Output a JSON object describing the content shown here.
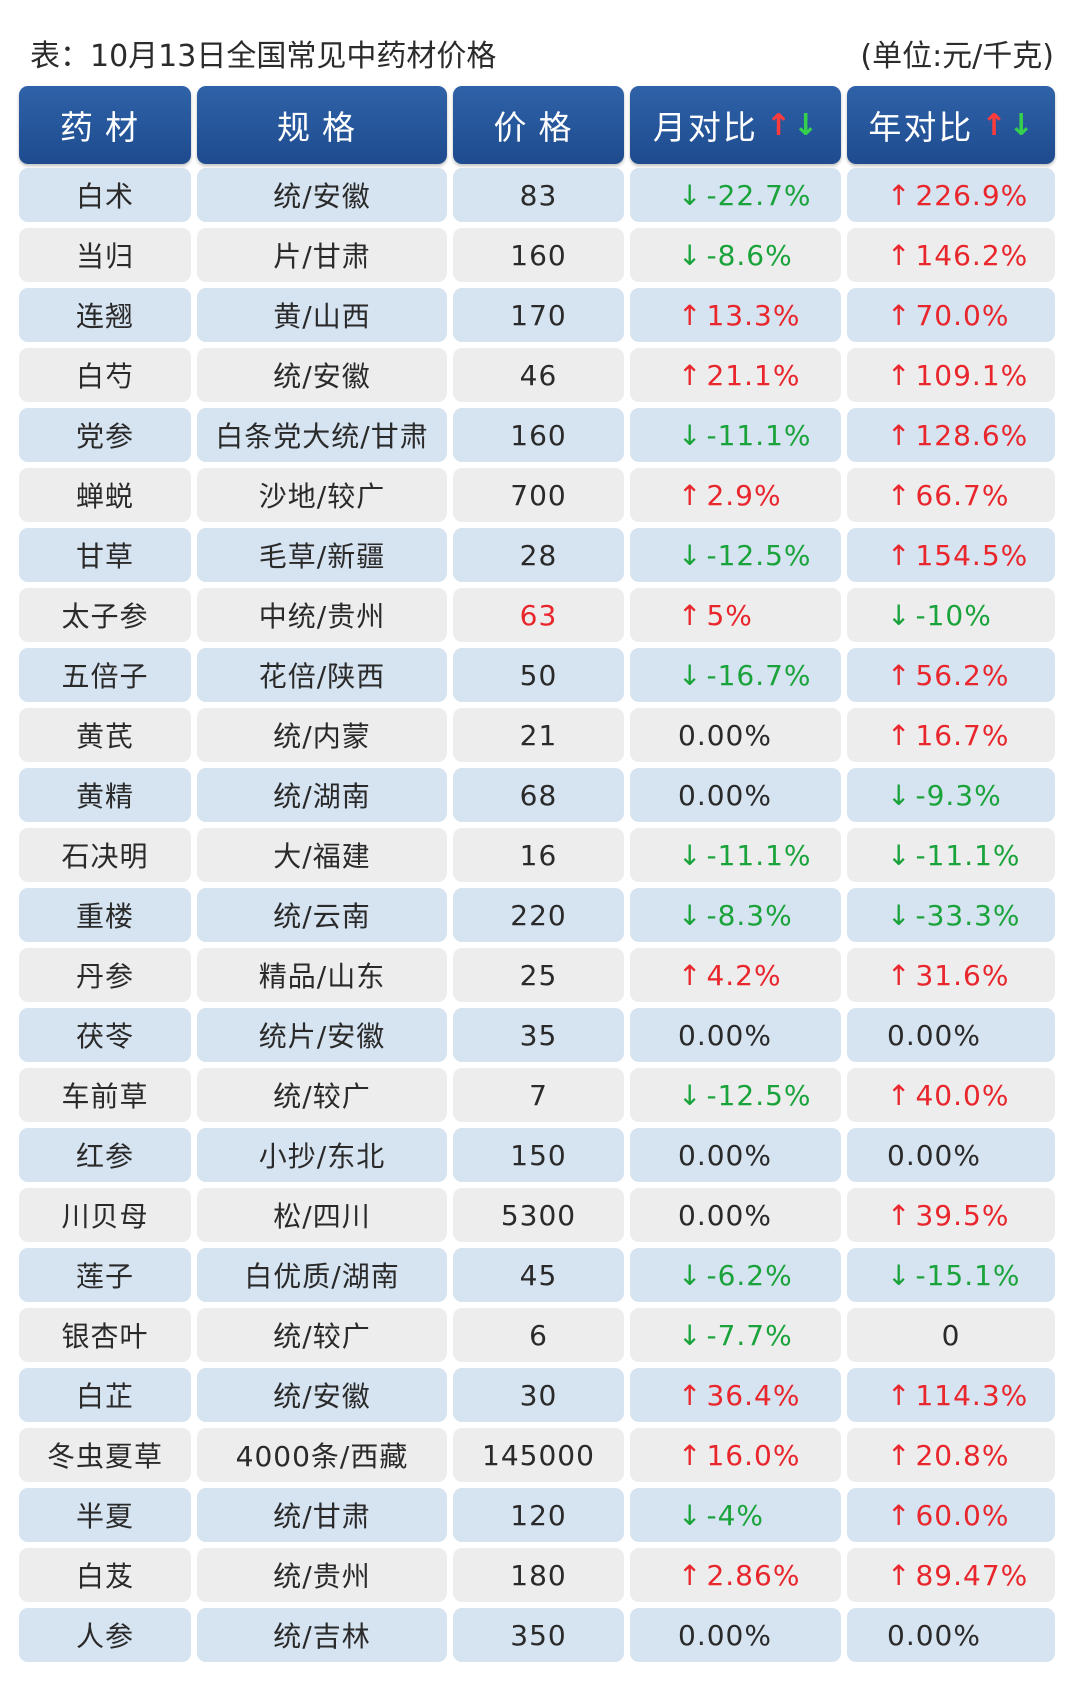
{
  "title": "表：10月13日全国常见中药材价格",
  "unit": "(单位:元/千克)",
  "headers": {
    "name": "药材",
    "spec": "规格",
    "price": "价格",
    "month": "月对比",
    "year": "年对比"
  },
  "colors": {
    "header_bg": "#2458a0",
    "row_blue": "#d6e3f0",
    "row_gray": "#ededed",
    "up": "#e8262b",
    "down": "#1aa33a"
  },
  "rows": [
    {
      "name": "白术",
      "spec": "统/安徽",
      "price": "83",
      "month": "-22.7%",
      "month_dir": "down",
      "year": "226.9%",
      "year_dir": "up"
    },
    {
      "name": "当归",
      "spec": "片/甘肃",
      "price": "160",
      "month": "-8.6%",
      "month_dir": "down",
      "year": "146.2%",
      "year_dir": "up"
    },
    {
      "name": "连翘",
      "spec": "黄/山西",
      "price": "170",
      "month": "13.3%",
      "month_dir": "up",
      "year": "70.0%",
      "year_dir": "up"
    },
    {
      "name": "白芍",
      "spec": "统/安徽",
      "price": "46",
      "month": "21.1%",
      "month_dir": "up",
      "year": "109.1%",
      "year_dir": "up"
    },
    {
      "name": "党参",
      "spec": "白条党大统/甘肃",
      "price": "160",
      "month": "-11.1%",
      "month_dir": "down",
      "year": "128.6%",
      "year_dir": "up"
    },
    {
      "name": "蝉蜕",
      "spec": "沙地/较广",
      "price": "700",
      "month": "2.9%",
      "month_dir": "up",
      "year": "66.7%",
      "year_dir": "up"
    },
    {
      "name": "甘草",
      "spec": "毛草/新疆",
      "price": "28",
      "month": "-12.5%",
      "month_dir": "down",
      "year": "154.5%",
      "year_dir": "up"
    },
    {
      "name": "太子参",
      "spec": "中统/贵州",
      "price": "63",
      "price_red": true,
      "month": "5%",
      "month_dir": "up",
      "year": "-10%",
      "year_dir": "down"
    },
    {
      "name": "五倍子",
      "spec": "花倍/陕西",
      "price": "50",
      "month": "-16.7%",
      "month_dir": "down",
      "year": "56.2%",
      "year_dir": "up"
    },
    {
      "name": "黄芪",
      "spec": "统/内蒙",
      "price": "21",
      "month": "0.00%",
      "month_dir": "flat",
      "year": "16.7%",
      "year_dir": "up"
    },
    {
      "name": "黄精",
      "spec": "统/湖南",
      "price": "68",
      "month": "0.00%",
      "month_dir": "flat",
      "year": "-9.3%",
      "year_dir": "down"
    },
    {
      "name": "石决明",
      "spec": "大/福建",
      "price": "16",
      "month": "-11.1%",
      "month_dir": "down",
      "year": "-11.1%",
      "year_dir": "down"
    },
    {
      "name": "重楼",
      "spec": "统/云南",
      "price": "220",
      "month": "-8.3%",
      "month_dir": "down",
      "year": "-33.3%",
      "year_dir": "down"
    },
    {
      "name": "丹参",
      "spec": "精品/山东",
      "price": "25",
      "month": "4.2%",
      "month_dir": "up",
      "year": "31.6%",
      "year_dir": "up"
    },
    {
      "name": "茯苓",
      "spec": "统片/安徽",
      "price": "35",
      "month": "0.00%",
      "month_dir": "flat",
      "year": "0.00%",
      "year_dir": "flat"
    },
    {
      "name": "车前草",
      "spec": "统/较广",
      "price": "7",
      "month": "-12.5%",
      "month_dir": "down",
      "year": "40.0%",
      "year_dir": "up"
    },
    {
      "name": "红参",
      "spec": "小抄/东北",
      "price": "150",
      "month": "0.00%",
      "month_dir": "flat",
      "year": "0.00%",
      "year_dir": "flat"
    },
    {
      "name": "川贝母",
      "spec": "松/四川",
      "price": "5300",
      "month": "0.00%",
      "month_dir": "flat",
      "year": "39.5%",
      "year_dir": "up"
    },
    {
      "name": "莲子",
      "spec": "白优质/湖南",
      "price": "45",
      "month": "-6.2%",
      "month_dir": "down",
      "year": "-15.1%",
      "year_dir": "down"
    },
    {
      "name": "银杏叶",
      "spec": "统/较广",
      "price": "6",
      "month": "-7.7%",
      "month_dir": "down",
      "year": "0",
      "year_dir": "flat",
      "year_center": true
    },
    {
      "name": "白芷",
      "spec": "统/安徽",
      "price": "30",
      "month": "36.4%",
      "month_dir": "up",
      "year": "114.3%",
      "year_dir": "up"
    },
    {
      "name": "冬虫夏草",
      "spec": "4000条/西藏",
      "price": "145000",
      "month": "16.0%",
      "month_dir": "up",
      "year": "20.8%",
      "year_dir": "up"
    },
    {
      "name": "半夏",
      "spec": "统/甘肃",
      "price": "120",
      "month": "-4%",
      "month_dir": "down",
      "year": "60.0%",
      "year_dir": "up"
    },
    {
      "name": "白芨",
      "spec": "统/贵州",
      "price": "180",
      "month": "2.86%",
      "month_dir": "up",
      "year": "89.47%",
      "year_dir": "up"
    },
    {
      "name": "人参",
      "spec": "统/吉林",
      "price": "350",
      "month": "0.00%",
      "month_dir": "flat",
      "year": "0.00%",
      "year_dir": "flat"
    }
  ]
}
